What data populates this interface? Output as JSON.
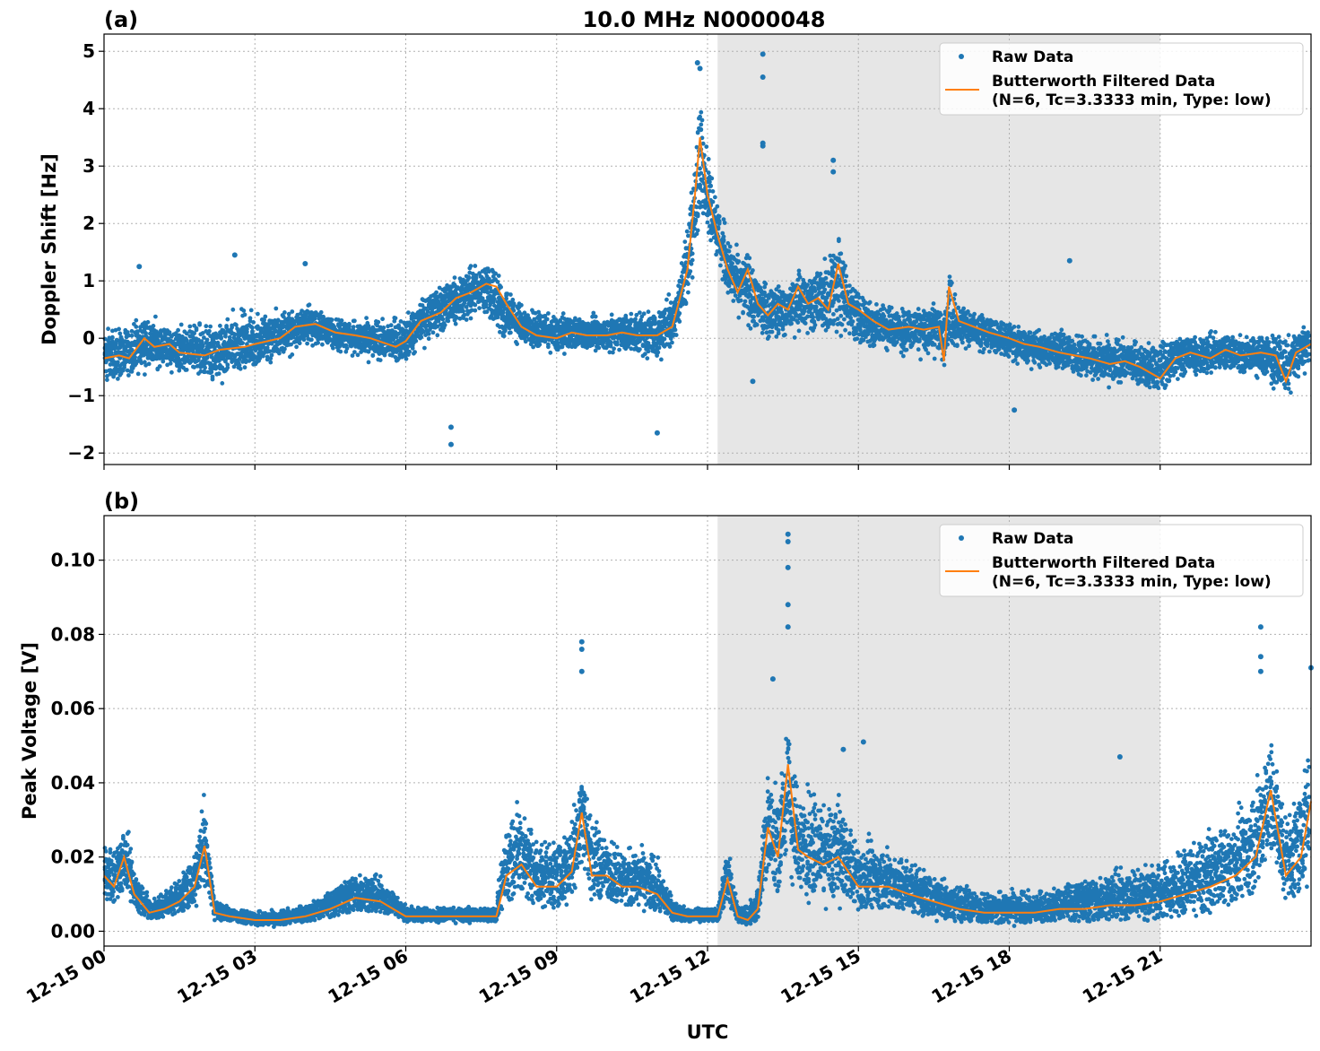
{
  "figure": {
    "title": "10.0 MHz N0000048",
    "xlabel": "UTC"
  },
  "colors": {
    "raw": "#1f77b4",
    "filtered": "#ff7f0e",
    "shade": "#e6e6e6",
    "grid": "#b0b0b0"
  },
  "x_axis": {
    "range_hours": [
      0,
      24
    ],
    "ticks_hours": [
      0,
      3,
      6,
      9,
      12,
      15,
      18,
      21
    ],
    "tick_labels": [
      "12-15 00",
      "12-15 03",
      "12-15 06",
      "12-15 09",
      "12-15 12",
      "12-15 15",
      "12-15 18",
      "12-15 21"
    ]
  },
  "shaded_interval_hours": [
    12.2,
    21.0
  ],
  "legend": {
    "raw_label": "Raw Data",
    "filtered_label_line1": "Butterworth Filtered Data",
    "filtered_label_line2": "(N=6, Tc=3.3333 min, Type: low)"
  },
  "chart_data": [
    {
      "type": "scatter",
      "panel": "(a)",
      "ylabel": "Doppler Shift [Hz]",
      "ylim": [
        -2.2,
        5.3
      ],
      "yticks": [
        -2,
        -1,
        0,
        1,
        2,
        3,
        4,
        5
      ],
      "ytick_labels": [
        "−2",
        "−1",
        "0",
        "1",
        "2",
        "3",
        "4",
        "5"
      ],
      "grid": true,
      "legend_position": "top-right",
      "series": [
        {
          "name": "Butterworth Filtered Data",
          "kind": "line",
          "x": [
            0,
            0.3,
            0.5,
            0.8,
            1.0,
            1.3,
            1.5,
            2.0,
            2.3,
            2.8,
            3.0,
            3.5,
            3.8,
            4.2,
            4.6,
            5.0,
            5.3,
            5.8,
            6.0,
            6.3,
            6.7,
            7.0,
            7.3,
            7.6,
            7.8,
            8.0,
            8.3,
            8.6,
            9.0,
            9.3,
            9.6,
            10.0,
            10.3,
            10.6,
            11.0,
            11.3,
            11.6,
            11.75,
            11.85,
            12.0,
            12.2,
            12.4,
            12.6,
            12.8,
            13.0,
            13.2,
            13.4,
            13.6,
            13.8,
            14.0,
            14.2,
            14.4,
            14.6,
            14.8,
            15.0,
            15.3,
            15.6,
            16.0,
            16.3,
            16.6,
            16.7,
            16.8,
            17.0,
            17.3,
            17.6,
            18.0,
            18.3,
            18.6,
            19.0,
            19.3,
            19.6,
            20.0,
            20.3,
            20.6,
            21.0,
            21.3,
            21.6,
            22.0,
            22.3,
            22.6,
            23.0,
            23.3,
            23.5,
            23.7,
            24.0
          ],
          "y": [
            -0.35,
            -0.3,
            -0.35,
            0.0,
            -0.15,
            -0.1,
            -0.25,
            -0.3,
            -0.2,
            -0.15,
            -0.1,
            0.0,
            0.2,
            0.25,
            0.1,
            0.05,
            0.0,
            -0.15,
            -0.05,
            0.3,
            0.45,
            0.7,
            0.8,
            0.95,
            0.9,
            0.6,
            0.2,
            0.05,
            0.0,
            0.1,
            0.05,
            0.05,
            0.1,
            0.05,
            0.05,
            0.2,
            1.2,
            2.5,
            3.5,
            2.5,
            1.8,
            1.2,
            0.8,
            1.2,
            0.6,
            0.4,
            0.6,
            0.5,
            0.9,
            0.6,
            0.7,
            0.5,
            1.3,
            0.6,
            0.5,
            0.3,
            0.15,
            0.2,
            0.15,
            0.2,
            -0.4,
            0.9,
            0.3,
            0.2,
            0.1,
            0.0,
            -0.1,
            -0.15,
            -0.25,
            -0.3,
            -0.35,
            -0.45,
            -0.4,
            -0.5,
            -0.7,
            -0.35,
            -0.25,
            -0.35,
            -0.2,
            -0.3,
            -0.25,
            -0.3,
            -0.75,
            -0.25,
            -0.1
          ]
        },
        {
          "name": "Raw Data",
          "kind": "scatter",
          "band_x": [
            0,
            0.5,
            1.0,
            1.5,
            2.0,
            2.5,
            3.0,
            3.5,
            4.0,
            4.5,
            5.0,
            5.5,
            6.0,
            6.5,
            7.0,
            7.5,
            8.0,
            8.5,
            9.0,
            9.5,
            10.0,
            10.5,
            11.0,
            11.4,
            11.7,
            11.9,
            12.1,
            12.4,
            12.7,
            13.0,
            13.5,
            14.0,
            14.5,
            15.0,
            15.5,
            16.0,
            16.5,
            17.0,
            17.5,
            18.0,
            18.5,
            19.0,
            19.5,
            20.0,
            20.5,
            21.0,
            21.5,
            22.0,
            22.5,
            23.0,
            23.5,
            24.0
          ],
          "band_low": [
            -0.9,
            -0.8,
            -0.7,
            -0.7,
            -0.9,
            -0.9,
            -0.7,
            -0.5,
            -0.2,
            -0.3,
            -0.4,
            -0.5,
            -0.5,
            -0.2,
            0.1,
            0.3,
            -0.2,
            -0.2,
            -0.3,
            -0.3,
            -0.4,
            -0.4,
            -0.5,
            -0.2,
            0.6,
            1.8,
            1.4,
            0.6,
            0.2,
            -0.2,
            -0.1,
            -0.1,
            -0.1,
            -0.3,
            -0.3,
            -0.4,
            -0.4,
            -0.3,
            -0.4,
            -0.5,
            -0.6,
            -0.7,
            -0.8,
            -0.9,
            -0.9,
            -1.0,
            -0.8,
            -0.7,
            -0.7,
            -0.8,
            -1.1,
            -0.5
          ],
          "band_high": [
            0.3,
            0.4,
            0.5,
            0.3,
            0.4,
            0.6,
            0.7,
            0.7,
            0.7,
            0.5,
            0.4,
            0.4,
            0.6,
            1.0,
            1.3,
            1.4,
            1.0,
            0.6,
            0.5,
            0.5,
            0.5,
            0.6,
            0.7,
            1.2,
            3.0,
            4.2,
            3.0,
            2.0,
            1.5,
            1.2,
            1.1,
            1.2,
            2.0,
            0.8,
            0.8,
            0.6,
            0.7,
            0.6,
            0.5,
            0.4,
            0.3,
            0.3,
            0.2,
            0.1,
            0.1,
            0.1,
            0.2,
            0.2,
            0.2,
            0.2,
            0.2,
            0.3
          ],
          "outliers_x": [
            0.7,
            2.6,
            6.9,
            6.9,
            11.8,
            11.85,
            13.1,
            13.1,
            13.1,
            13.1,
            14.5,
            14.5,
            19.2,
            18.1,
            12.9,
            11.0,
            4.0
          ],
          "outliers_y": [
            1.25,
            1.45,
            -1.55,
            -1.85,
            4.8,
            4.7,
            4.95,
            4.55,
            3.4,
            3.35,
            3.1,
            2.9,
            1.35,
            -1.25,
            -0.75,
            -1.65,
            1.3
          ]
        }
      ]
    },
    {
      "type": "scatter",
      "panel": "(b)",
      "ylabel": "Peak Voltage [V]",
      "ylim": [
        -0.004,
        0.112
      ],
      "yticks": [
        0.0,
        0.02,
        0.04,
        0.06,
        0.08,
        0.1
      ],
      "ytick_labels": [
        "0.00",
        "0.02",
        "0.04",
        "0.06",
        "0.08",
        "0.10"
      ],
      "grid": true,
      "legend_position": "top-right",
      "series": [
        {
          "name": "Butterworth Filtered Data",
          "kind": "line",
          "x": [
            0,
            0.2,
            0.4,
            0.6,
            0.9,
            1.2,
            1.5,
            1.8,
            2.0,
            2.2,
            2.5,
            3.0,
            3.5,
            4.0,
            4.5,
            5.0,
            5.5,
            6.0,
            6.5,
            7.0,
            7.5,
            7.8,
            8.0,
            8.3,
            8.6,
            9.0,
            9.3,
            9.5,
            9.7,
            10.0,
            10.3,
            10.6,
            11.0,
            11.3,
            11.6,
            12.0,
            12.2,
            12.4,
            12.6,
            12.8,
            13.0,
            13.2,
            13.4,
            13.6,
            13.8,
            14.0,
            14.3,
            14.6,
            15.0,
            15.3,
            15.6,
            16.0,
            16.5,
            17.0,
            17.5,
            18.0,
            18.5,
            19.0,
            19.5,
            20.0,
            20.5,
            21.0,
            21.5,
            22.0,
            22.5,
            22.9,
            23.2,
            23.5,
            23.8,
            24.0
          ],
          "y": [
            0.015,
            0.012,
            0.02,
            0.01,
            0.005,
            0.006,
            0.008,
            0.012,
            0.023,
            0.005,
            0.004,
            0.003,
            0.003,
            0.004,
            0.006,
            0.009,
            0.008,
            0.004,
            0.004,
            0.004,
            0.004,
            0.004,
            0.015,
            0.018,
            0.012,
            0.012,
            0.016,
            0.032,
            0.015,
            0.015,
            0.012,
            0.012,
            0.01,
            0.005,
            0.004,
            0.004,
            0.004,
            0.014,
            0.004,
            0.003,
            0.006,
            0.028,
            0.02,
            0.045,
            0.022,
            0.02,
            0.018,
            0.02,
            0.012,
            0.012,
            0.012,
            0.01,
            0.008,
            0.006,
            0.005,
            0.005,
            0.005,
            0.006,
            0.006,
            0.007,
            0.007,
            0.008,
            0.01,
            0.012,
            0.015,
            0.02,
            0.038,
            0.015,
            0.02,
            0.035
          ]
        },
        {
          "name": "Raw Data",
          "kind": "scatter",
          "band_x": [
            0,
            0.2,
            0.4,
            0.6,
            0.9,
            1.2,
            1.5,
            1.8,
            2.0,
            2.2,
            2.5,
            3.0,
            3.5,
            4.0,
            4.5,
            5.0,
            5.5,
            6.0,
            6.5,
            7.0,
            7.5,
            7.8,
            8.0,
            8.3,
            8.6,
            9.0,
            9.3,
            9.5,
            9.7,
            10.0,
            10.3,
            10.6,
            11.0,
            11.3,
            11.6,
            12.0,
            12.2,
            12.4,
            12.6,
            12.8,
            13.0,
            13.2,
            13.4,
            13.6,
            13.8,
            14.0,
            14.3,
            14.6,
            15.0,
            15.3,
            15.6,
            16.0,
            16.5,
            17.0,
            17.5,
            18.0,
            18.5,
            19.0,
            19.5,
            20.0,
            20.5,
            21.0,
            21.5,
            22.0,
            22.5,
            22.9,
            23.2,
            23.5,
            23.8,
            24.0
          ],
          "band_low": [
            0.004,
            0.005,
            0.006,
            0.004,
            0.002,
            0.003,
            0.004,
            0.005,
            0.008,
            0.002,
            0.002,
            0.001,
            0.001,
            0.002,
            0.003,
            0.004,
            0.004,
            0.002,
            0.002,
            0.002,
            0.002,
            0.002,
            0.006,
            0.007,
            0.005,
            0.005,
            0.006,
            0.01,
            0.006,
            0.005,
            0.005,
            0.005,
            0.004,
            0.002,
            0.002,
            0.002,
            0.002,
            0.005,
            0.002,
            0.001,
            0.002,
            0.008,
            0.006,
            0.01,
            0.006,
            0.005,
            0.005,
            0.005,
            0.003,
            0.003,
            0.003,
            0.003,
            0.002,
            0.001,
            0.001,
            0.001,
            0.001,
            0.002,
            0.002,
            0.002,
            0.002,
            0.002,
            0.003,
            0.004,
            0.006,
            0.007,
            0.012,
            0.006,
            0.008,
            0.01
          ],
          "band_high": [
            0.028,
            0.025,
            0.035,
            0.02,
            0.01,
            0.012,
            0.016,
            0.025,
            0.044,
            0.01,
            0.007,
            0.006,
            0.006,
            0.008,
            0.012,
            0.018,
            0.016,
            0.008,
            0.007,
            0.007,
            0.007,
            0.008,
            0.035,
            0.04,
            0.028,
            0.028,
            0.035,
            0.055,
            0.035,
            0.03,
            0.025,
            0.025,
            0.022,
            0.01,
            0.007,
            0.007,
            0.007,
            0.028,
            0.008,
            0.007,
            0.015,
            0.05,
            0.045,
            0.06,
            0.045,
            0.045,
            0.038,
            0.04,
            0.028,
            0.028,
            0.025,
            0.022,
            0.018,
            0.015,
            0.012,
            0.012,
            0.012,
            0.014,
            0.016,
            0.018,
            0.02,
            0.022,
            0.025,
            0.03,
            0.035,
            0.045,
            0.06,
            0.035,
            0.045,
            0.07
          ],
          "outliers_x": [
            9.5,
            9.5,
            9.5,
            13.6,
            13.6,
            13.6,
            13.6,
            13.6,
            13.3,
            23.0,
            23.0,
            23.0,
            24.0,
            20.2,
            15.1,
            14.7
          ],
          "outliers_y": [
            0.078,
            0.076,
            0.07,
            0.107,
            0.105,
            0.098,
            0.088,
            0.082,
            0.068,
            0.082,
            0.074,
            0.07,
            0.071,
            0.047,
            0.051,
            0.049
          ]
        }
      ]
    }
  ]
}
